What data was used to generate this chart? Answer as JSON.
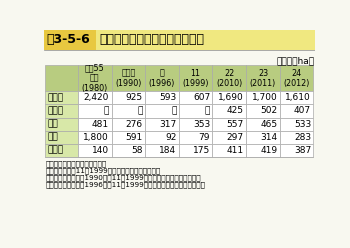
{
  "title_label": "表3-5-6",
  "title_main": "なたねの地域別作付面積の推移",
  "unit": "（単位：ha）",
  "col_headers": [
    "昭和55\n年度\n(1980)",
    "平成２\n(1990)",
    "８\n(1996)",
    "11\n(1999)",
    "22\n(2010)",
    "23\n(2011)",
    "24\n(2012)"
  ],
  "row_labels": [
    "全国計",
    "北海道",
    "東北",
    "九州",
    "その他"
  ],
  "data": [
    [
      "2,420",
      "925",
      "593",
      "607",
      "1,690",
      "1,700",
      "1,610"
    ],
    [
      "－",
      "－",
      "－",
      "－",
      "425",
      "502",
      "407"
    ],
    [
      "481",
      "276",
      "317",
      "353",
      "557",
      "465",
      "533"
    ],
    [
      "1,800",
      "591",
      "92",
      "79",
      "297",
      "314",
      "283"
    ],
    [
      "140",
      "58",
      "184",
      "175",
      "411",
      "419",
      "387"
    ]
  ],
  "footnote_line1": "資料：農林水産省「作物統計」",
  "footnote_line2": "　注：１）平成11（1999）年産までは主産県調査。",
  "footnote_line3": "　　　２）平成２（1990）～11（1999）年産の東北は青森県の値。",
  "footnote_line4": "　　　　　平成８（1996）、11（1999）年産の九州は鹿児島県の値。",
  "title_label_bg": "#e8c840",
  "title_main_bg": "#f0e880",
  "header_bg": "#b8cc80",
  "row_label_bg": "#d8e8a8",
  "data_bg": "#ffffff",
  "border_color": "#aaaaaa",
  "outer_bg": "#f8f8f0",
  "title_text_color": "#000000",
  "data_text_color": "#000000"
}
